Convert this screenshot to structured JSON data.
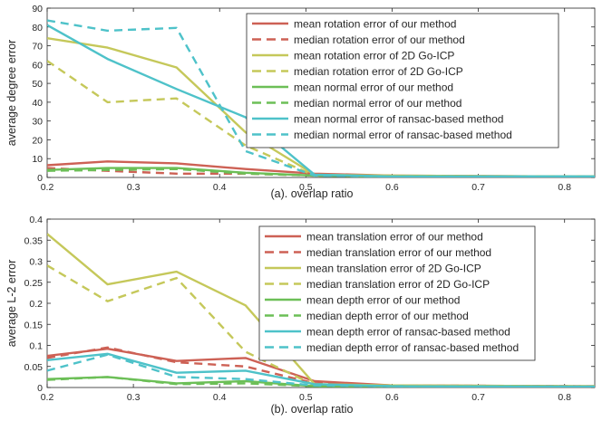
{
  "chart_data": [
    {
      "type": "line",
      "xlabel": "(a). overlap ratio",
      "ylabel": "average degree error",
      "xlim": [
        0.2,
        0.835
      ],
      "ylim": [
        0,
        90
      ],
      "x_ticks": [
        "0.2",
        "0.3",
        "0.4",
        "0.5",
        "0.6",
        "0.7",
        "0.8"
      ],
      "y_ticks": [
        "0",
        "10",
        "20",
        "30",
        "40",
        "50",
        "60",
        "70",
        "80",
        "90"
      ],
      "grid": false,
      "legend_position": "top-right",
      "series": [
        {
          "name": "mean rotation error of our method",
          "color": "#cd6155",
          "dash": "solid",
          "x": [
            0.2,
            0.27,
            0.35,
            0.43,
            0.51,
            0.6,
            0.835
          ],
          "y": [
            6.5,
            8.5,
            7.5,
            4.5,
            2.0,
            1.0,
            0.5
          ]
        },
        {
          "name": "median rotation error of our method",
          "color": "#cd6155",
          "dash": "dashed",
          "x": [
            0.2,
            0.27,
            0.35,
            0.43,
            0.51,
            0.6,
            0.835
          ],
          "y": [
            5.0,
            3.5,
            2.0,
            2.0,
            1.0,
            0.5,
            0.5
          ]
        },
        {
          "name": "mean rotation error of 2D Go-ICP",
          "color": "#c5c85a",
          "dash": "solid",
          "x": [
            0.2,
            0.27,
            0.35,
            0.43,
            0.51,
            0.6,
            0.835
          ],
          "y": [
            74,
            69,
            58.5,
            24,
            1.5,
            1.0,
            0.5
          ]
        },
        {
          "name": "median rotation error of 2D Go-ICP",
          "color": "#c5c85a",
          "dash": "dashed",
          "x": [
            0.2,
            0.27,
            0.35,
            0.43,
            0.51,
            0.6,
            0.835
          ],
          "y": [
            62,
            40,
            42,
            17,
            1.0,
            0.5,
            0.5
          ]
        },
        {
          "name": "mean normal error of our method",
          "color": "#6cbf57",
          "dash": "solid",
          "x": [
            0.2,
            0.27,
            0.35,
            0.43,
            0.51,
            0.6,
            0.835
          ],
          "y": [
            4.0,
            5.0,
            5.0,
            2.5,
            1.0,
            0.5,
            0.5
          ]
        },
        {
          "name": "median normal error of our method",
          "color": "#6cbf57",
          "dash": "dashed",
          "x": [
            0.2,
            0.27,
            0.35,
            0.43,
            0.51,
            0.6,
            0.835
          ],
          "y": [
            3.5,
            4.0,
            4.5,
            2.0,
            1.0,
            0.5,
            0.5
          ]
        },
        {
          "name": "mean normal error of ransac-based method",
          "color": "#4ec2c9",
          "dash": "solid",
          "x": [
            0.2,
            0.27,
            0.35,
            0.43,
            0.51,
            0.6,
            0.835
          ],
          "y": [
            81,
            63,
            47,
            32,
            1.5,
            0.5,
            0.5
          ]
        },
        {
          "name": "median normal error of ransac-based method",
          "color": "#4ec2c9",
          "dash": "dashed",
          "x": [
            0.2,
            0.27,
            0.35,
            0.43,
            0.51,
            0.6,
            0.835
          ],
          "y": [
            83.5,
            78,
            79.5,
            14,
            1.0,
            0.5,
            0.5
          ]
        }
      ]
    },
    {
      "type": "line",
      "xlabel": "(b). overlap ratio",
      "ylabel": "average L-2 error",
      "xlim": [
        0.2,
        0.835
      ],
      "ylim": [
        0,
        0.4
      ],
      "x_ticks": [
        "0.2",
        "0.3",
        "0.4",
        "0.5",
        "0.6",
        "0.7",
        "0.8"
      ],
      "y_ticks": [
        "0",
        "0.05",
        "0.1",
        "0.15",
        "0.2",
        "0.25",
        "0.3",
        "0.35",
        "0.4"
      ],
      "grid": false,
      "legend_position": "top-right",
      "series": [
        {
          "name": "mean translation error of our method",
          "color": "#cd6155",
          "dash": "solid",
          "x": [
            0.2,
            0.27,
            0.35,
            0.43,
            0.51,
            0.6,
            0.835
          ],
          "y": [
            0.075,
            0.092,
            0.063,
            0.07,
            0.015,
            0.005,
            0.003
          ]
        },
        {
          "name": "median translation error of our method",
          "color": "#cd6155",
          "dash": "dashed",
          "x": [
            0.2,
            0.27,
            0.35,
            0.43,
            0.51,
            0.6,
            0.835
          ],
          "y": [
            0.07,
            0.095,
            0.06,
            0.05,
            0.01,
            0.005,
            0.003
          ]
        },
        {
          "name": "mean translation error of 2D Go-ICP",
          "color": "#c5c85a",
          "dash": "solid",
          "x": [
            0.2,
            0.27,
            0.35,
            0.43,
            0.51,
            0.6,
            0.835
          ],
          "y": [
            0.365,
            0.245,
            0.275,
            0.195,
            0.008,
            0.005,
            0.003
          ]
        },
        {
          "name": "median translation error of 2D Go-ICP",
          "color": "#c5c85a",
          "dash": "dashed",
          "x": [
            0.2,
            0.27,
            0.35,
            0.43,
            0.51,
            0.6,
            0.835
          ],
          "y": [
            0.29,
            0.205,
            0.26,
            0.085,
            0.005,
            0.003,
            0.003
          ]
        },
        {
          "name": "mean depth error of our method",
          "color": "#6cbf57",
          "dash": "solid",
          "x": [
            0.2,
            0.27,
            0.35,
            0.43,
            0.51,
            0.6,
            0.835
          ],
          "y": [
            0.02,
            0.025,
            0.01,
            0.015,
            0.003,
            0.003,
            0.002
          ]
        },
        {
          "name": "median depth error of our method",
          "color": "#6cbf57",
          "dash": "dashed",
          "x": [
            0.2,
            0.27,
            0.35,
            0.43,
            0.51,
            0.6,
            0.835
          ],
          "y": [
            0.018,
            0.025,
            0.008,
            0.01,
            0.003,
            0.003,
            0.002
          ]
        },
        {
          "name": "mean depth error of ransac-based method",
          "color": "#4ec2c9",
          "dash": "solid",
          "x": [
            0.2,
            0.27,
            0.35,
            0.43,
            0.51,
            0.6,
            0.835
          ],
          "y": [
            0.065,
            0.08,
            0.035,
            0.04,
            0.008,
            0.003,
            0.002
          ]
        },
        {
          "name": "median depth error of ransac-based method",
          "color": "#4ec2c9",
          "dash": "dashed",
          "x": [
            0.2,
            0.27,
            0.35,
            0.43,
            0.51,
            0.6,
            0.835
          ],
          "y": [
            0.04,
            0.078,
            0.025,
            0.02,
            0.005,
            0.003,
            0.002
          ]
        }
      ]
    }
  ]
}
